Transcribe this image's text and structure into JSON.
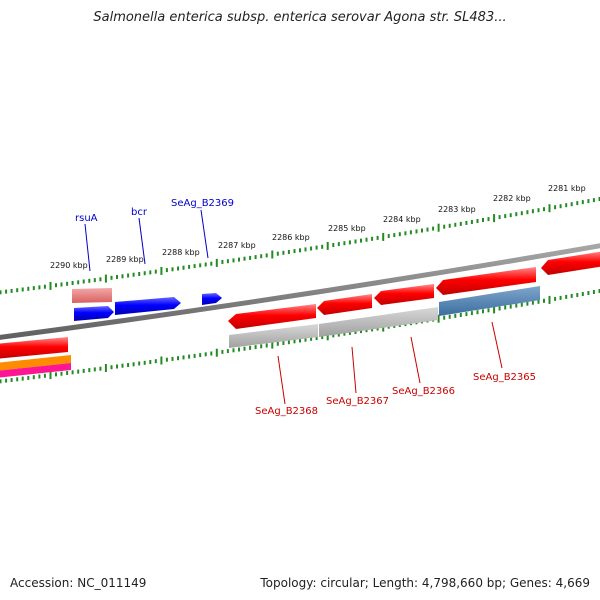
{
  "title": "Salmonella enterica subsp. enterica serovar Agona str. SL483...",
  "footer": {
    "accession": "Accession: NC_011149",
    "summary": "Topology: circular; Length: 4,798,660 bp; Genes: 4,669"
  },
  "scale_labels": [
    "2290 kbp",
    "2289 kbp",
    "2288 kbp",
    "2287 kbp",
    "2286 kbp",
    "2285 kbp",
    "2284 kbp",
    "2283 kbp",
    "2282 kbp",
    "2281 kbp"
  ],
  "forward_genes": [
    "rsuA",
    "bcr",
    "SeAg_B2369"
  ],
  "reverse_genes": [
    "SeAg_B2368",
    "SeAg_B2367",
    "SeAg_B2366",
    "SeAg_B2365"
  ],
  "colors": {
    "forward_cds": "#0000ff",
    "reverse_cds": "#ff0000",
    "backbone": "#808080",
    "tick": "#228b22",
    "light_red": "#f08080",
    "steel_blue": "#4682b4",
    "gray_feature": "#b4b4b4",
    "orange": "#ff8c00",
    "pink": "#ff1493"
  }
}
